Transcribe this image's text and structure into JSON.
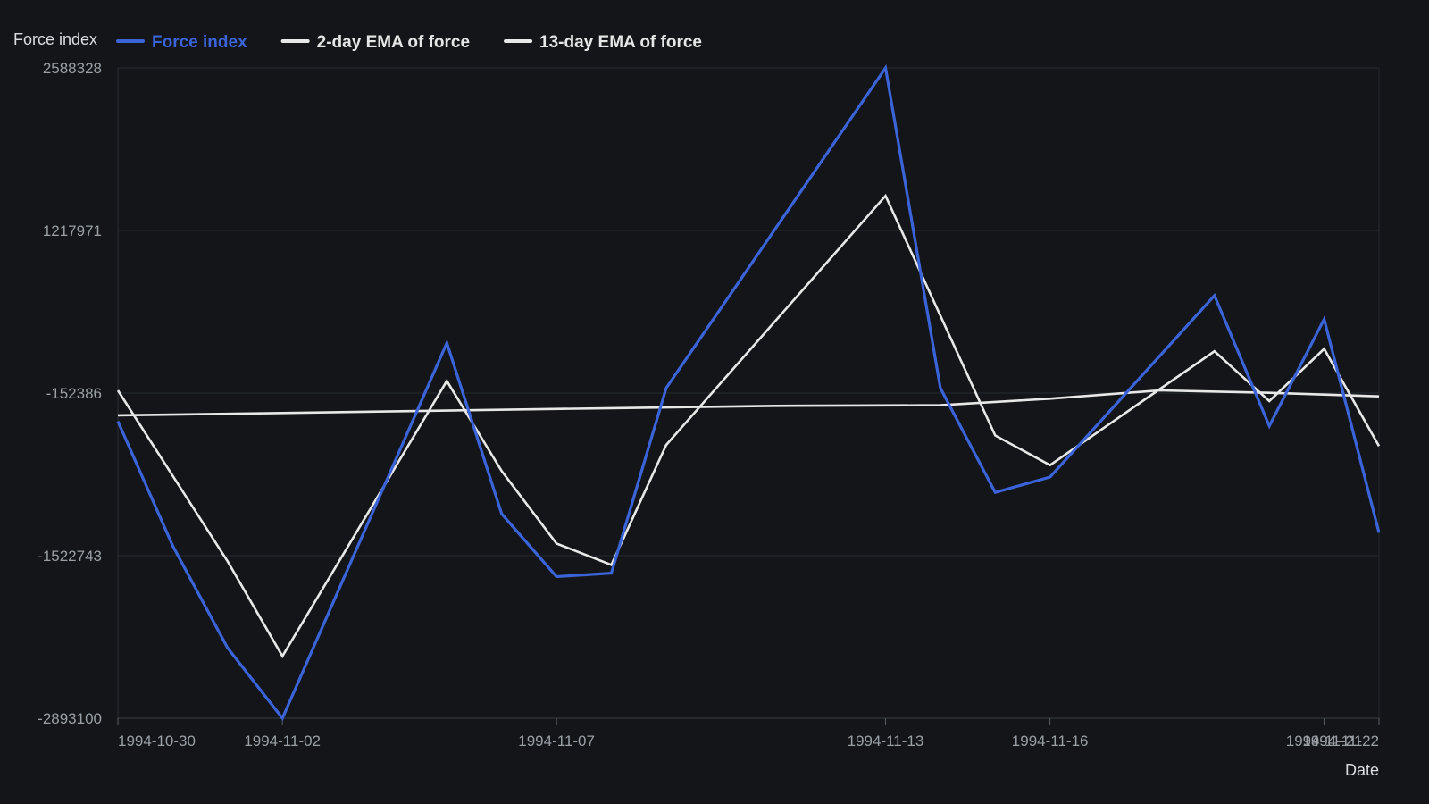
{
  "chart_data": {
    "type": "line",
    "ylabel": "Force index",
    "xlabel": "Date",
    "ylim": [
      -2893100,
      2588328
    ],
    "y_ticks": [
      "2588328",
      "1217971",
      "-152386",
      "-1522743",
      "-2893100"
    ],
    "y_tick_values": [
      2588328,
      1217971,
      -152386,
      -1522743,
      -2893100
    ],
    "x_range": [
      "1994-10-30",
      "1994-11-22"
    ],
    "x_ticks": [
      "1994-10-30",
      "1994-11-02",
      "1994-11-07",
      "1994-11-13",
      "1994-11-16",
      "1994-11-21",
      "1994-11-22"
    ],
    "grid": "horizontal",
    "legend_position": "top-left",
    "series": [
      {
        "name": "Force index",
        "color": "#3a64d8",
        "points": [
          [
            "1994-10-30",
            -390000
          ],
          [
            "1994-10-31",
            -1440000
          ],
          [
            "1994-11-01",
            -2300000
          ],
          [
            "1994-11-02",
            -2893100
          ],
          [
            "1994-11-05",
            270000
          ],
          [
            "1994-11-06",
            -1170000
          ],
          [
            "1994-11-07",
            -1700000
          ],
          [
            "1994-11-08",
            -1670000
          ],
          [
            "1994-11-09",
            -110000
          ],
          [
            "1994-11-13",
            2588328
          ],
          [
            "1994-11-14",
            -110000
          ],
          [
            "1994-11-15",
            -990000
          ],
          [
            "1994-11-16",
            -860000
          ],
          [
            "1994-11-19",
            670000
          ],
          [
            "1994-11-20",
            -430000
          ],
          [
            "1994-11-21",
            470000
          ],
          [
            "1994-11-22",
            -1330000
          ]
        ]
      },
      {
        "name": "2-day EMA of force",
        "color": "#e8e8e8",
        "points": [
          [
            "1994-10-30",
            -130000
          ],
          [
            "1994-11-01",
            -1570000
          ],
          [
            "1994-11-02",
            -2370000
          ],
          [
            "1994-11-05",
            -50000
          ],
          [
            "1994-11-06",
            -810000
          ],
          [
            "1994-11-07",
            -1420000
          ],
          [
            "1994-11-08",
            -1600000
          ],
          [
            "1994-11-09",
            -590000
          ],
          [
            "1994-11-13",
            1510000
          ],
          [
            "1994-11-15",
            -510000
          ],
          [
            "1994-11-16",
            -760000
          ],
          [
            "1994-11-19",
            200000
          ],
          [
            "1994-11-20",
            -220000
          ],
          [
            "1994-11-21",
            220000
          ],
          [
            "1994-11-22",
            -600000
          ]
        ]
      },
      {
        "name": "13-day EMA of force",
        "color": "#e8e8e8",
        "points": [
          [
            "1994-10-30",
            -340000
          ],
          [
            "1994-11-02",
            -320000
          ],
          [
            "1994-11-05",
            -300000
          ],
          [
            "1994-11-08",
            -280000
          ],
          [
            "1994-11-11",
            -260000
          ],
          [
            "1994-11-14",
            -255000
          ],
          [
            "1994-11-16",
            -200000
          ],
          [
            "1994-11-18",
            -130000
          ],
          [
            "1994-11-20",
            -150000
          ],
          [
            "1994-11-22",
            -180000
          ]
        ]
      }
    ]
  }
}
